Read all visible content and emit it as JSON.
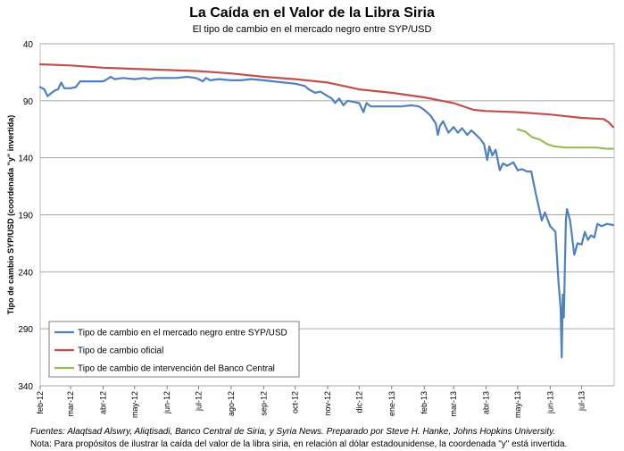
{
  "header": {
    "title": "La Caída en el Valor de la Libra Siria",
    "subtitle": "El tipo de cambio en el mercado negro entre SYP/USD"
  },
  "footer": {
    "sources": "Fuentes: Alaqtsad Alswry, Aliqtisadi, Banco Central de Siria, y Syria News. Preparado por Steve H. Hanke, Johns Hopkins University.",
    "note": "Nota: Para propósitos de ilustrar la caída del valor de la libra siria, en relación al dólar estadounidense, la coordenada \"y\" está invertida."
  },
  "chart_data": {
    "type": "line",
    "title": "La Caída en el Valor de la Libra Siria",
    "subtitle": "El tipo de cambio en el mercado negro entre SYP/USD",
    "ylabel": "Tipo de cambio SYP/USD (coordenada \"y\" invertida)",
    "xlabel": "",
    "y_inverted": true,
    "ylim": [
      40,
      340
    ],
    "yticks": [
      40,
      90,
      140,
      190,
      240,
      290,
      340
    ],
    "xlim": [
      "2012-02-01",
      "2013-08-01"
    ],
    "xticks": [
      {
        "date": "2012-02-01",
        "label": "feb-12"
      },
      {
        "date": "2012-03-01",
        "label": "mar-12"
      },
      {
        "date": "2012-04-01",
        "label": "abr-12"
      },
      {
        "date": "2012-05-01",
        "label": "may-12"
      },
      {
        "date": "2012-06-01",
        "label": "jun-12"
      },
      {
        "date": "2012-07-01",
        "label": "jul-12"
      },
      {
        "date": "2012-08-01",
        "label": "ago-12"
      },
      {
        "date": "2012-09-01",
        "label": "sep-12"
      },
      {
        "date": "2012-10-01",
        "label": "oct-12"
      },
      {
        "date": "2012-11-01",
        "label": "nov-12"
      },
      {
        "date": "2012-12-01",
        "label": "dic-12"
      },
      {
        "date": "2013-01-01",
        "label": "ene-13"
      },
      {
        "date": "2013-02-01",
        "label": "feb-13"
      },
      {
        "date": "2013-03-01",
        "label": "mar-13"
      },
      {
        "date": "2013-04-01",
        "label": "abr-13"
      },
      {
        "date": "2013-05-01",
        "label": "may-13"
      },
      {
        "date": "2013-06-01",
        "label": "jun-13"
      },
      {
        "date": "2013-07-01",
        "label": "jul-13"
      }
    ],
    "grid": "horizontal",
    "legend_position": "bottom-left",
    "series": [
      {
        "name": "Tipo de cambio en el mercado negro entre SYP/USD",
        "color": "#4f81bd",
        "points": [
          [
            "2012-02-01",
            78
          ],
          [
            "2012-02-05",
            80
          ],
          [
            "2012-02-08",
            86
          ],
          [
            "2012-02-12",
            83
          ],
          [
            "2012-02-15",
            81
          ],
          [
            "2012-02-18",
            80
          ],
          [
            "2012-02-21",
            74
          ],
          [
            "2012-02-24",
            79
          ],
          [
            "2012-03-01",
            79
          ],
          [
            "2012-03-06",
            78
          ],
          [
            "2012-03-10",
            73
          ],
          [
            "2012-03-20",
            73
          ],
          [
            "2012-04-01",
            73
          ],
          [
            "2012-04-05",
            71
          ],
          [
            "2012-04-08",
            69
          ],
          [
            "2012-04-12",
            71
          ],
          [
            "2012-04-20",
            70
          ],
          [
            "2012-05-01",
            71
          ],
          [
            "2012-05-10",
            70
          ],
          [
            "2012-05-15",
            71
          ],
          [
            "2012-05-20",
            70
          ],
          [
            "2012-06-01",
            70
          ],
          [
            "2012-06-10",
            70
          ],
          [
            "2012-06-20",
            69
          ],
          [
            "2012-06-28",
            70
          ],
          [
            "2012-07-01",
            71
          ],
          [
            "2012-07-05",
            73
          ],
          [
            "2012-07-08",
            70
          ],
          [
            "2012-07-12",
            72
          ],
          [
            "2012-07-20",
            71
          ],
          [
            "2012-08-01",
            72
          ],
          [
            "2012-08-10",
            72
          ],
          [
            "2012-08-20",
            71
          ],
          [
            "2012-09-01",
            72
          ],
          [
            "2012-09-10",
            73
          ],
          [
            "2012-09-20",
            74
          ],
          [
            "2012-10-01",
            75
          ],
          [
            "2012-10-10",
            77
          ],
          [
            "2012-10-14",
            80
          ],
          [
            "2012-10-20",
            83
          ],
          [
            "2012-10-25",
            82
          ],
          [
            "2012-11-01",
            86
          ],
          [
            "2012-11-05",
            88
          ],
          [
            "2012-11-08",
            92
          ],
          [
            "2012-11-12",
            88
          ],
          [
            "2012-11-16",
            94
          ],
          [
            "2012-11-20",
            90
          ],
          [
            "2012-12-01",
            92
          ],
          [
            "2012-12-05",
            100
          ],
          [
            "2012-12-08",
            92
          ],
          [
            "2012-12-12",
            95
          ],
          [
            "2012-12-20",
            95
          ],
          [
            "2013-01-01",
            95
          ],
          [
            "2013-01-10",
            95
          ],
          [
            "2013-01-20",
            94
          ],
          [
            "2013-01-27",
            95
          ],
          [
            "2013-02-01",
            98
          ],
          [
            "2013-02-07",
            103
          ],
          [
            "2013-02-12",
            110
          ],
          [
            "2013-02-14",
            120
          ],
          [
            "2013-02-16",
            112
          ],
          [
            "2013-02-19",
            108
          ],
          [
            "2013-02-24",
            118
          ],
          [
            "2013-03-01",
            113
          ],
          [
            "2013-03-05",
            118
          ],
          [
            "2013-03-09",
            114
          ],
          [
            "2013-03-14",
            120
          ],
          [
            "2013-03-18",
            116
          ],
          [
            "2013-03-26",
            123
          ],
          [
            "2013-03-30",
            128
          ],
          [
            "2013-04-02",
            142
          ],
          [
            "2013-04-04",
            130
          ],
          [
            "2013-04-07",
            138
          ],
          [
            "2013-04-10",
            133
          ],
          [
            "2013-04-14",
            151
          ],
          [
            "2013-04-17",
            145
          ],
          [
            "2013-04-21",
            147
          ],
          [
            "2013-04-27",
            144
          ],
          [
            "2013-05-01",
            151
          ],
          [
            "2013-05-05",
            150
          ],
          [
            "2013-05-10",
            152
          ],
          [
            "2013-05-14",
            152
          ],
          [
            "2013-05-18",
            170
          ],
          [
            "2013-05-24",
            195
          ],
          [
            "2013-05-27",
            188
          ],
          [
            "2013-06-01",
            200
          ],
          [
            "2013-06-06",
            205
          ],
          [
            "2013-06-09",
            250
          ],
          [
            "2013-06-11",
            272
          ],
          [
            "2013-06-12",
            315
          ],
          [
            "2013-06-13",
            260
          ],
          [
            "2013-06-14",
            280
          ],
          [
            "2013-06-16",
            195
          ],
          [
            "2013-06-17",
            185
          ],
          [
            "2013-06-20",
            195
          ],
          [
            "2013-06-24",
            225
          ],
          [
            "2013-06-27",
            215
          ],
          [
            "2013-07-01",
            216
          ],
          [
            "2013-07-04",
            205
          ],
          [
            "2013-07-07",
            212
          ],
          [
            "2013-07-10",
            208
          ],
          [
            "2013-07-13",
            210
          ],
          [
            "2013-07-16",
            198
          ],
          [
            "2013-07-20",
            200
          ],
          [
            "2013-07-25",
            198
          ],
          [
            "2013-07-31",
            199
          ]
        ]
      },
      {
        "name": "Tipo de cambio oficial",
        "color": "#c0504d",
        "points": [
          [
            "2012-02-01",
            58
          ],
          [
            "2012-03-01",
            59
          ],
          [
            "2012-04-01",
            61
          ],
          [
            "2012-05-01",
            62
          ],
          [
            "2012-06-01",
            63
          ],
          [
            "2012-07-01",
            64
          ],
          [
            "2012-08-01",
            66
          ],
          [
            "2012-09-01",
            69
          ],
          [
            "2012-10-01",
            71
          ],
          [
            "2012-11-01",
            74
          ],
          [
            "2012-12-01",
            80
          ],
          [
            "2013-01-01",
            83
          ],
          [
            "2013-02-01",
            87
          ],
          [
            "2013-03-01",
            92
          ],
          [
            "2013-03-20",
            98
          ],
          [
            "2013-04-01",
            99
          ],
          [
            "2013-05-01",
            100
          ],
          [
            "2013-06-01",
            102
          ],
          [
            "2013-07-01",
            105
          ],
          [
            "2013-07-22",
            106
          ],
          [
            "2013-07-27",
            109
          ],
          [
            "2013-07-31",
            113
          ]
        ]
      },
      {
        "name": "Tipo de cambio de intervención del Banco Central",
        "color": "#9bbb59",
        "points": [
          [
            "2013-05-01",
            115
          ],
          [
            "2013-05-08",
            117
          ],
          [
            "2013-05-15",
            122
          ],
          [
            "2013-05-22",
            124
          ],
          [
            "2013-05-29",
            128
          ],
          [
            "2013-06-05",
            130
          ],
          [
            "2013-06-15",
            131
          ],
          [
            "2013-07-01",
            131
          ],
          [
            "2013-07-15",
            131
          ],
          [
            "2013-07-25",
            132
          ],
          [
            "2013-07-31",
            132
          ]
        ]
      }
    ]
  }
}
